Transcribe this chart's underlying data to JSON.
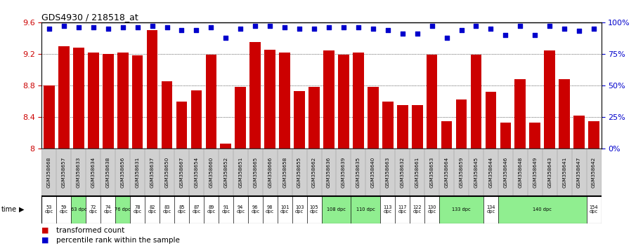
{
  "title": "GDS4930 / 218518_at",
  "samples": [
    "GSM358668",
    "GSM358657",
    "GSM358633",
    "GSM358634",
    "GSM358638",
    "GSM358656",
    "GSM358631",
    "GSM358637",
    "GSM358650",
    "GSM358667",
    "GSM358654",
    "GSM358660",
    "GSM358652",
    "GSM358651",
    "GSM358665",
    "GSM358666",
    "GSM358658",
    "GSM358655",
    "GSM358662",
    "GSM358636",
    "GSM358639",
    "GSM358635",
    "GSM358640",
    "GSM358663",
    "GSM358632",
    "GSM358661",
    "GSM358653",
    "GSM358664",
    "GSM358659",
    "GSM358645",
    "GSM358644",
    "GSM358646",
    "GSM358648",
    "GSM358649",
    "GSM358643",
    "GSM358641",
    "GSM358647",
    "GSM358642"
  ],
  "bar_values": [
    8.8,
    9.3,
    9.28,
    9.22,
    9.2,
    9.22,
    9.18,
    9.5,
    8.85,
    8.6,
    8.74,
    9.19,
    8.07,
    8.78,
    9.35,
    9.25,
    9.22,
    8.73,
    8.78,
    9.24,
    9.19,
    9.22,
    8.78,
    8.6,
    8.55,
    8.55,
    9.19,
    8.35,
    8.62,
    9.19,
    8.72,
    8.33,
    8.88,
    8.33,
    9.24,
    8.88,
    8.42,
    8.35
  ],
  "percentile_values": [
    95,
    97,
    96,
    96,
    95,
    96,
    96,
    97,
    96,
    94,
    94,
    96,
    88,
    95,
    97,
    97,
    96,
    95,
    95,
    96,
    96,
    96,
    95,
    94,
    91,
    91,
    97,
    88,
    94,
    97,
    95,
    90,
    97,
    90,
    97,
    95,
    93,
    95
  ],
  "time_groups": [
    {
      "label": "53\ndpc",
      "start": 0,
      "end": 0,
      "bg": "white"
    },
    {
      "label": "59\ndpc",
      "start": 1,
      "end": 1,
      "bg": "white"
    },
    {
      "label": "63 dpc",
      "start": 2,
      "end": 2,
      "bg": "lightgreen"
    },
    {
      "label": "72\ndpc",
      "start": 3,
      "end": 3,
      "bg": "white"
    },
    {
      "label": "74\ndpc",
      "start": 4,
      "end": 4,
      "bg": "white"
    },
    {
      "label": "76 dpc",
      "start": 5,
      "end": 5,
      "bg": "lightgreen"
    },
    {
      "label": "78\ndpc",
      "start": 6,
      "end": 6,
      "bg": "white"
    },
    {
      "label": "82\ndpc",
      "start": 7,
      "end": 7,
      "bg": "white"
    },
    {
      "label": "83\ndpc",
      "start": 8,
      "end": 8,
      "bg": "white"
    },
    {
      "label": "85\ndpc",
      "start": 9,
      "end": 9,
      "bg": "white"
    },
    {
      "label": "87\ndpc",
      "start": 10,
      "end": 10,
      "bg": "white"
    },
    {
      "label": "89\ndpc",
      "start": 11,
      "end": 11,
      "bg": "white"
    },
    {
      "label": "91\ndpc",
      "start": 12,
      "end": 12,
      "bg": "white"
    },
    {
      "label": "94\ndpc",
      "start": 13,
      "end": 13,
      "bg": "white"
    },
    {
      "label": "96\ndpc",
      "start": 14,
      "end": 14,
      "bg": "white"
    },
    {
      "label": "98\ndpc",
      "start": 15,
      "end": 15,
      "bg": "white"
    },
    {
      "label": "101\ndpc",
      "start": 16,
      "end": 16,
      "bg": "white"
    },
    {
      "label": "103\ndpc",
      "start": 17,
      "end": 17,
      "bg": "white"
    },
    {
      "label": "105\ndpc",
      "start": 18,
      "end": 18,
      "bg": "white"
    },
    {
      "label": "108 dpc",
      "start": 19,
      "end": 20,
      "bg": "lightgreen"
    },
    {
      "label": "110 dpc",
      "start": 21,
      "end": 22,
      "bg": "lightgreen"
    },
    {
      "label": "113\ndpc",
      "start": 23,
      "end": 23,
      "bg": "white"
    },
    {
      "label": "117\ndpc",
      "start": 24,
      "end": 24,
      "bg": "white"
    },
    {
      "label": "122\ndpc",
      "start": 25,
      "end": 25,
      "bg": "white"
    },
    {
      "label": "130\ndpc",
      "start": 26,
      "end": 26,
      "bg": "white"
    },
    {
      "label": "133 dpc",
      "start": 27,
      "end": 29,
      "bg": "lightgreen"
    },
    {
      "label": "134\ndpc",
      "start": 30,
      "end": 30,
      "bg": "white"
    },
    {
      "label": "140 dpc",
      "start": 31,
      "end": 36,
      "bg": "lightgreen"
    },
    {
      "label": "154\ndpc",
      "start": 37,
      "end": 37,
      "bg": "white"
    }
  ],
  "ylim": [
    8.0,
    9.6
  ],
  "yticks_left": [
    8.0,
    8.4,
    8.8,
    9.2,
    9.6
  ],
  "ytick_labels_left": [
    "8",
    "8.4",
    "8.8",
    "9.2",
    "9.6"
  ],
  "yticks_right": [
    0,
    25,
    50,
    75,
    100
  ],
  "ytick_labels_right": [
    "0%",
    "25%",
    "50%",
    "75%",
    "100%"
  ],
  "bar_color": "#cc0000",
  "dot_color": "#0000cc",
  "label_bg_color": "#d0d0d0",
  "green_color": "#90ee90"
}
